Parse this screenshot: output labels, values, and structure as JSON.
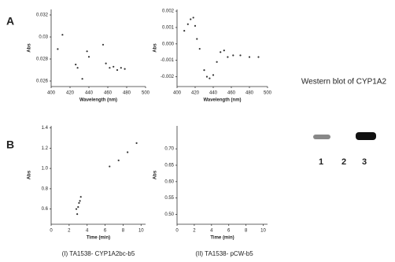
{
  "chart_data": [
    {
      "type": "scatter",
      "x_label": "Wavelength (nm)",
      "y_label": "Abs",
      "color": "#333",
      "x": [
        407,
        412,
        426,
        428,
        433,
        438,
        440,
        455,
        458,
        462,
        466,
        470,
        474,
        478
      ],
      "values": [
        0.0289,
        0.0302,
        0.0275,
        0.0272,
        0.0262,
        0.0287,
        0.0282,
        0.0293,
        0.0276,
        0.0272,
        0.0273,
        0.027,
        0.0272,
        0.0271
      ],
      "xlim": [
        400,
        500
      ],
      "ylim": [
        0.0255,
        0.0325
      ],
      "xticks": [
        400,
        420,
        440,
        460,
        480,
        500
      ],
      "yticks": [
        0.026,
        0.028,
        0.03,
        0.032
      ]
    },
    {
      "type": "scatter",
      "x_label": "Wavelength (nm)",
      "y_label": "Abs",
      "color": "#333",
      "x": [
        408,
        412,
        415,
        418,
        420,
        422,
        425,
        430,
        433,
        436,
        440,
        444,
        448,
        452,
        456,
        462,
        470,
        480,
        490
      ],
      "values": [
        0.0008,
        0.0012,
        0.0015,
        0.0016,
        0.0011,
        0.0003,
        -0.0003,
        -0.0016,
        -0.002,
        -0.0021,
        -0.0019,
        -0.0011,
        -0.0005,
        -0.0004,
        -0.0008,
        -0.0007,
        -0.0007,
        -0.0008,
        -0.0008
      ],
      "xlim": [
        400,
        500
      ],
      "ylim": [
        -0.0026,
        0.0021
      ],
      "xticks": [
        400,
        420,
        440,
        460,
        480,
        500
      ],
      "yticks": [
        -0.002,
        -0.001,
        {
          "value": 0,
          "label": "0.000"
        },
        0.001,
        0.002
      ]
    },
    {
      "type": "scatter",
      "x_label": "Time (min)",
      "y_label": "Abs",
      "color": "#333",
      "x": [
        2.8,
        2.9,
        3.0,
        3.1,
        3.2,
        3.3,
        6.5,
        7.5,
        8.5,
        9.5
      ],
      "values": [
        0.6,
        0.55,
        0.62,
        0.66,
        0.68,
        0.72,
        1.02,
        1.08,
        1.16,
        1.25
      ],
      "xlim": [
        0,
        10.5
      ],
      "ylim": [
        0.45,
        1.42
      ],
      "xticks": [
        0,
        2,
        4,
        6,
        8,
        10
      ],
      "yticks": [
        0.6,
        0.8,
        {
          "value": 1,
          "label": "1.0"
        },
        1.2,
        1.4
      ]
    },
    {
      "type": "scatter",
      "x_label": "Time (min)",
      "y_label": "Abs",
      "color": "#333",
      "x": [],
      "values": [],
      "xlim": [
        0,
        10.5
      ],
      "ylim": [
        0.47,
        0.77
      ],
      "xticks": [
        0,
        2,
        4,
        6,
        8,
        10
      ],
      "yticks": [
        {
          "value": 0.5,
          "label": "0.50"
        },
        0.55,
        {
          "value": 0.6,
          "label": "0.60"
        },
        0.65,
        {
          "value": 0.7,
          "label": "0.70"
        }
      ]
    }
  ],
  "panel_labels": [
    "A",
    "B"
  ],
  "captions": [
    "(I) TA1538- CYP1A2bc-b5",
    "(II) TA1538- pCW-b5"
  ],
  "blot": {
    "title": "Western blot of CYP1A2",
    "lanes": [
      "1",
      "2",
      "3"
    ]
  }
}
